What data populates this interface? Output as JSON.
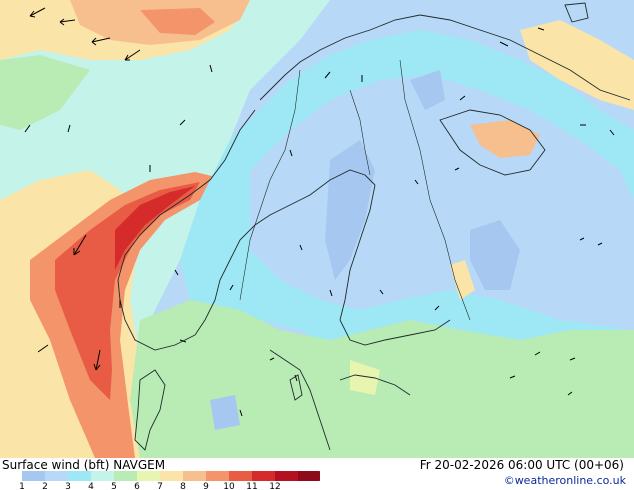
{
  "title_left": "Surface wind (bft)   NAVGEM",
  "title_right": "Fr 20-02-2026 06:00 UTC (00+06)",
  "copyright": "©weatheronline.co.uk",
  "legend": {
    "ticks": [
      "1",
      "2",
      "3",
      "4",
      "5",
      "6",
      "7",
      "8",
      "9",
      "10",
      "11",
      "12"
    ],
    "colors": [
      "#a6c8f0",
      "#b7d9f7",
      "#9ee8f5",
      "#c4f3ea",
      "#b9ebb5",
      "#e7f5b0",
      "#fbe4a7",
      "#f8bf8e",
      "#f3946b",
      "#e85c45",
      "#d62b2b",
      "#b31020",
      "#8c0a1a"
    ]
  },
  "map_colors": {
    "sea_light": "#c4f3ea",
    "green": "#b9ebb5",
    "yellow": "#e7f5b0",
    "peach": "#fbe4a7",
    "orange": "#f8bf8e",
    "salmon": "#f3946b",
    "red": "#e85c45",
    "dark_red": "#d62b2b",
    "cyan": "#9ee8f5",
    "light_blue": "#b7d9f7",
    "blue": "#a6c8f0",
    "coast": "#1f2a2a"
  }
}
